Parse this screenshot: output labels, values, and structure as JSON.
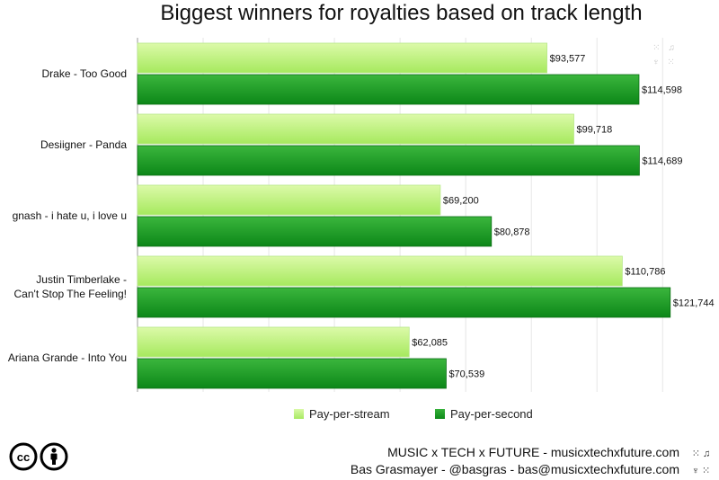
{
  "title": "Biggest winners for royalties based on track length",
  "chart_data": {
    "type": "bar",
    "orientation": "horizontal",
    "categories": [
      "Drake - Too Good",
      "Desiigner - Panda",
      "gnash - i hate u, i love u",
      "Justin Timberlake - Can't Stop The Feeling!",
      "Ariana Grande - Into You"
    ],
    "series": [
      {
        "name": "Pay-per-stream",
        "values": [
          93577,
          99718,
          69200,
          110786,
          62085
        ],
        "labels": [
          "$93,577",
          "$99,718",
          "$69,200",
          "$110,786",
          "$62,085"
        ],
        "color": "#b6ef74"
      },
      {
        "name": "Pay-per-second",
        "values": [
          114598,
          114689,
          80878,
          121744,
          70539
        ],
        "labels": [
          "$114,598",
          "$114,689",
          "$80,878",
          "$121,744",
          "$70,539"
        ],
        "color": "#1f9e2a"
      }
    ],
    "xlim": [
      0,
      130000
    ],
    "grid": true,
    "legend": "bottom"
  },
  "footer": {
    "line1": "MUSIC x TECH x FUTURE - musicxtechxfuture.com",
    "line2": "Bas Grasmayer - @basgras - bas@musicxtechxfuture.com",
    "license": "cc-by-license-icon",
    "icons_line1": "⁙ ♫",
    "icons_line2": "♆ ⁙"
  },
  "watermark": {
    "line1": "⁙ ♫",
    "line2": "♆ ⁙"
  }
}
